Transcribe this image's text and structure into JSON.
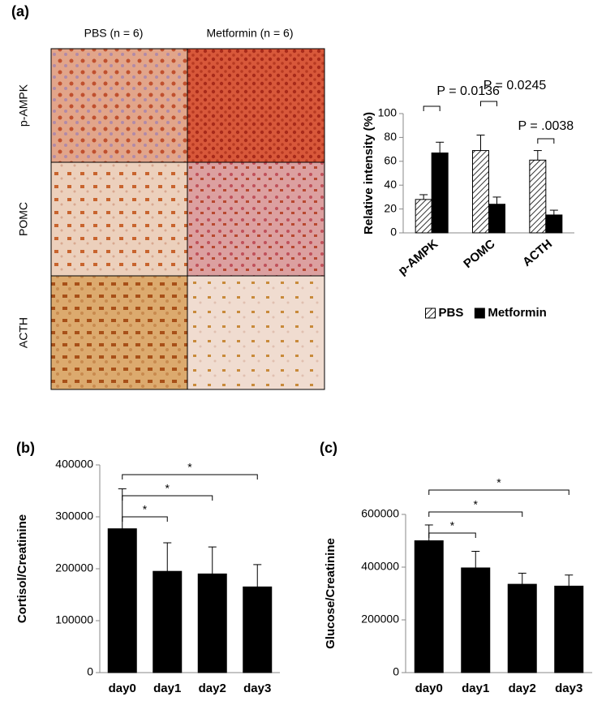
{
  "figure": {
    "image_grid": {
      "columns": [
        "PBS (n = 6)",
        "Metformin (n = 6)"
      ],
      "rows": [
        "p-AMPK",
        "POMC",
        "ACTH"
      ]
    }
  },
  "chart_data": [
    {
      "type": "bar",
      "panel_label": "(a)",
      "y_label": "Relative intensity (%)",
      "categories": [
        "p-AMPK",
        "POMC",
        "ACTH"
      ],
      "series": [
        {
          "name": "PBS",
          "color": "#000000",
          "pattern": "diagonal-hatch",
          "values": [
            28,
            69,
            61
          ],
          "errors": [
            4,
            13,
            8
          ]
        },
        {
          "name": "Metformin",
          "color": "#000000",
          "values": [
            67,
            24,
            15
          ],
          "errors": [
            9,
            6,
            4
          ]
        }
      ],
      "ylim": [
        0,
        100
      ],
      "yticks": [
        0,
        20,
        40,
        60,
        80,
        100
      ],
      "legend": "bottom",
      "annotations": [
        {
          "text": "P = 0.0136",
          "from": 0,
          "to": 0
        },
        {
          "text": "P = 0.0245",
          "from": 1,
          "to": 1
        },
        {
          "text": "P = .0038",
          "from": 2,
          "to": 2
        }
      ]
    },
    {
      "type": "bar",
      "panel_label": "(b)",
      "y_label": "Cortisol/Creatinine",
      "categories": [
        "day0",
        "day1",
        "day2",
        "day3"
      ],
      "color": "#000000",
      "values": [
        277000,
        195000,
        190000,
        165000
      ],
      "errors": [
        77000,
        55000,
        52000,
        43000
      ],
      "ylim": [
        0,
        400000
      ],
      "yticks": [
        0,
        100000,
        200000,
        300000,
        400000
      ],
      "annotations": [
        {
          "text": "*",
          "from": 0,
          "to": 1
        },
        {
          "text": "*",
          "from": 0,
          "to": 2
        },
        {
          "text": "*",
          "from": 0,
          "to": 3
        }
      ]
    },
    {
      "type": "bar",
      "panel_label": "(c)",
      "y_label": "Glucose/Creatinine",
      "categories": [
        "day0",
        "day1",
        "day2",
        "day3"
      ],
      "color": "#000000",
      "values": [
        500000,
        397000,
        335000,
        328000
      ],
      "errors": [
        60000,
        63000,
        42000,
        42000
      ],
      "ylim": [
        0,
        600000
      ],
      "yticks": [
        0,
        200000,
        400000,
        600000
      ],
      "annotations": [
        {
          "text": "*",
          "from": 0,
          "to": 1
        },
        {
          "text": "*",
          "from": 0,
          "to": 2
        },
        {
          "text": "*",
          "from": 0,
          "to": 3
        }
      ]
    }
  ]
}
